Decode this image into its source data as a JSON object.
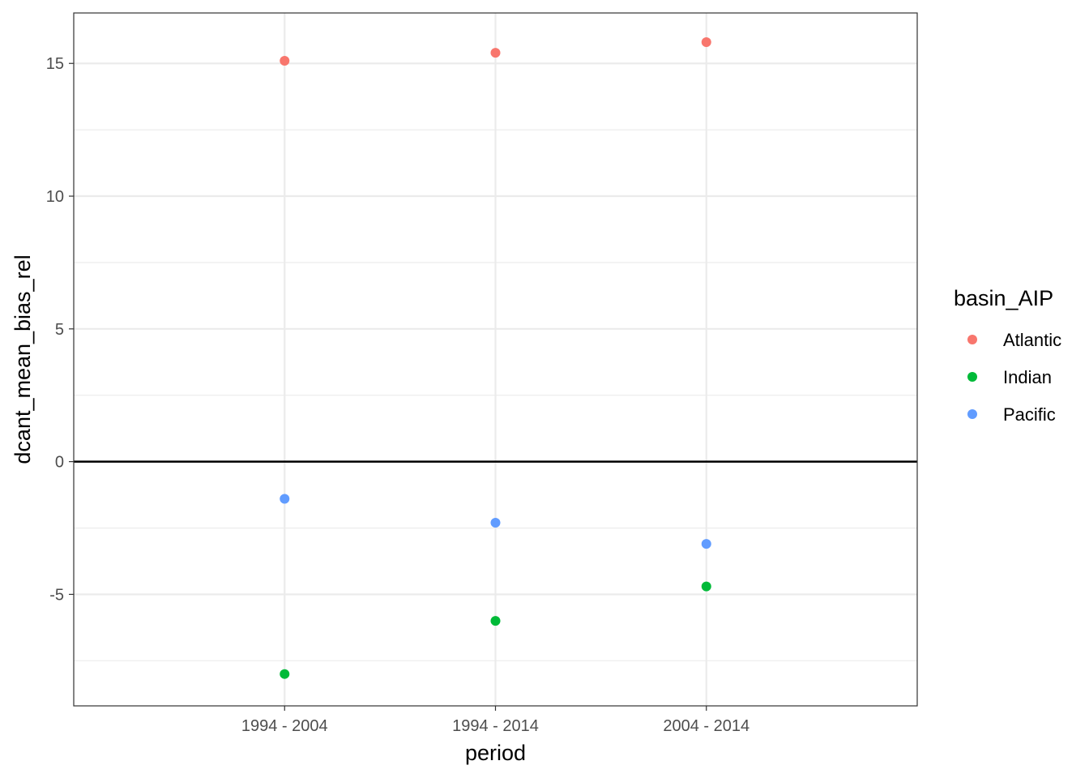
{
  "chart_data": {
    "type": "scatter",
    "title": "",
    "xlabel": "period",
    "ylabel": "dcant_mean_bias_rel",
    "categories": [
      "1994 - 2004",
      "1994 - 2014",
      "2004 - 2014"
    ],
    "ylim": [
      -9.2,
      16.9
    ],
    "y_ticks": [
      -5,
      0,
      5,
      10,
      15
    ],
    "y_tick_labels": [
      "-5",
      "0",
      "5",
      "10",
      "15"
    ],
    "reference_line": {
      "y": 0
    },
    "grid": true,
    "legend": {
      "title": "basin_AIP",
      "position": "right"
    },
    "series": [
      {
        "name": "Atlantic",
        "color": "#F8766D",
        "values": [
          15.1,
          15.4,
          15.8
        ]
      },
      {
        "name": "Indian",
        "color": "#00BA38",
        "values": [
          -8.0,
          -6.0,
          -4.7
        ]
      },
      {
        "name": "Pacific",
        "color": "#619CFF",
        "values": [
          -1.4,
          -2.3,
          -3.1
        ]
      }
    ]
  }
}
